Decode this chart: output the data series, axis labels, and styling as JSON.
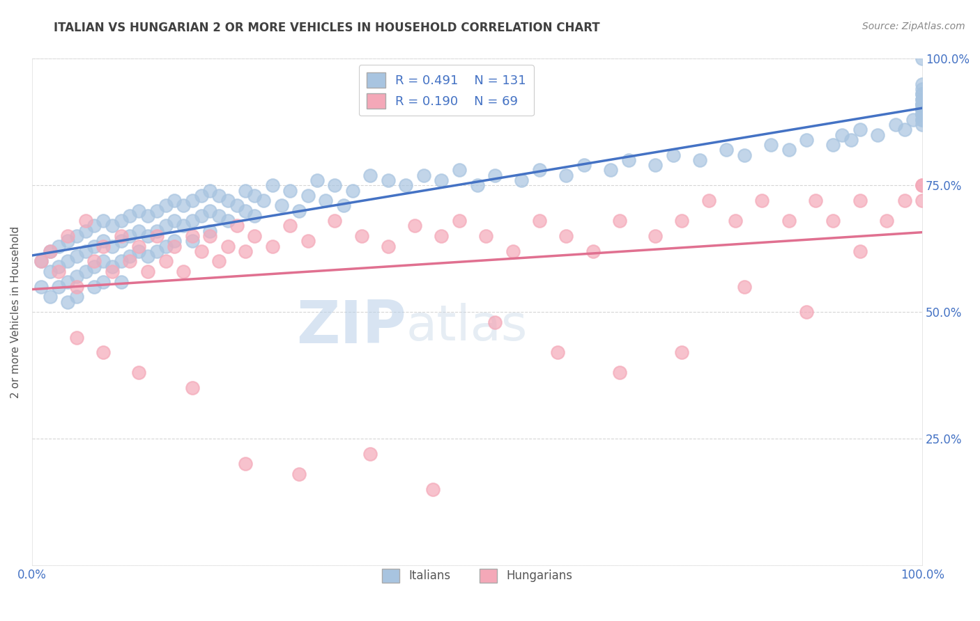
{
  "title": "ITALIAN VS HUNGARIAN 2 OR MORE VEHICLES IN HOUSEHOLD CORRELATION CHART",
  "source": "Source: ZipAtlas.com",
  "ylabel": "2 or more Vehicles in Household",
  "italian_R": 0.491,
  "italian_N": 131,
  "hungarian_R": 0.19,
  "hungarian_N": 69,
  "italian_color": "#a8c4e0",
  "hungarian_color": "#f4a8b8",
  "trend_italian_color": "#4472c4",
  "trend_hungarian_color": "#e07090",
  "legend_text_color": "#4472c4",
  "watermark_zip": "ZIP",
  "watermark_atlas": "atlas",
  "watermark_color": "#c8d8e8",
  "background_color": "#ffffff",
  "grid_color": "#cccccc",
  "title_color": "#404040",
  "axis_label_color": "#4472c4",
  "italian_x": [
    1,
    1,
    2,
    2,
    2,
    3,
    3,
    3,
    4,
    4,
    4,
    4,
    5,
    5,
    5,
    5,
    6,
    6,
    6,
    7,
    7,
    7,
    7,
    8,
    8,
    8,
    8,
    9,
    9,
    9,
    10,
    10,
    10,
    10,
    11,
    11,
    11,
    12,
    12,
    12,
    13,
    13,
    13,
    14,
    14,
    14,
    15,
    15,
    15,
    16,
    16,
    16,
    17,
    17,
    18,
    18,
    18,
    19,
    19,
    20,
    20,
    20,
    21,
    21,
    22,
    22,
    23,
    24,
    24,
    25,
    25,
    26,
    27,
    28,
    29,
    30,
    31,
    32,
    33,
    34,
    35,
    36,
    38,
    40,
    42,
    44,
    46,
    48,
    50,
    52,
    55,
    57,
    60,
    62,
    65,
    67,
    70,
    72,
    75,
    78,
    80,
    83,
    85,
    87,
    90,
    91,
    92,
    93,
    95,
    97,
    98,
    99,
    100,
    100,
    100,
    100,
    100,
    100,
    100,
    100,
    100,
    100,
    100,
    100,
    100,
    100,
    100,
    100,
    100,
    100,
    100
  ],
  "italian_y": [
    60,
    55,
    62,
    58,
    53,
    63,
    59,
    55,
    64,
    60,
    56,
    52,
    65,
    61,
    57,
    53,
    66,
    62,
    58,
    67,
    63,
    59,
    55,
    68,
    64,
    60,
    56,
    67,
    63,
    59,
    68,
    64,
    60,
    56,
    69,
    65,
    61,
    70,
    66,
    62,
    69,
    65,
    61,
    70,
    66,
    62,
    71,
    67,
    63,
    72,
    68,
    64,
    71,
    67,
    72,
    68,
    64,
    73,
    69,
    74,
    70,
    66,
    73,
    69,
    72,
    68,
    71,
    74,
    70,
    73,
    69,
    72,
    75,
    71,
    74,
    70,
    73,
    76,
    72,
    75,
    71,
    74,
    77,
    76,
    75,
    77,
    76,
    78,
    75,
    77,
    76,
    78,
    77,
    79,
    78,
    80,
    79,
    81,
    80,
    82,
    81,
    83,
    82,
    84,
    83,
    85,
    84,
    86,
    85,
    87,
    86,
    88,
    87,
    89,
    88,
    90,
    91,
    89,
    92,
    90,
    88,
    93,
    91,
    89,
    94,
    92,
    90,
    95,
    93,
    91,
    100
  ],
  "hungarian_x": [
    1,
    2,
    3,
    4,
    5,
    6,
    7,
    8,
    9,
    10,
    11,
    12,
    13,
    14,
    15,
    16,
    17,
    18,
    19,
    20,
    21,
    22,
    23,
    24,
    25,
    27,
    29,
    31,
    34,
    37,
    40,
    43,
    46,
    48,
    51,
    54,
    57,
    60,
    63,
    66,
    70,
    73,
    76,
    79,
    82,
    85,
    88,
    90,
    93,
    96,
    98,
    100,
    100,
    5,
    8,
    12,
    18,
    24,
    30,
    38,
    45,
    52,
    59,
    66,
    73,
    80,
    87,
    93,
    100
  ],
  "hungarian_y": [
    60,
    62,
    58,
    65,
    55,
    68,
    60,
    63,
    58,
    65,
    60,
    63,
    58,
    65,
    60,
    63,
    58,
    65,
    62,
    65,
    60,
    63,
    67,
    62,
    65,
    63,
    67,
    64,
    68,
    65,
    63,
    67,
    65,
    68,
    65,
    62,
    68,
    65,
    62,
    68,
    65,
    68,
    72,
    68,
    72,
    68,
    72,
    68,
    72,
    68,
    72,
    75,
    75,
    45,
    42,
    38,
    35,
    20,
    18,
    22,
    15,
    48,
    42,
    38,
    42,
    55,
    50,
    62,
    72
  ]
}
